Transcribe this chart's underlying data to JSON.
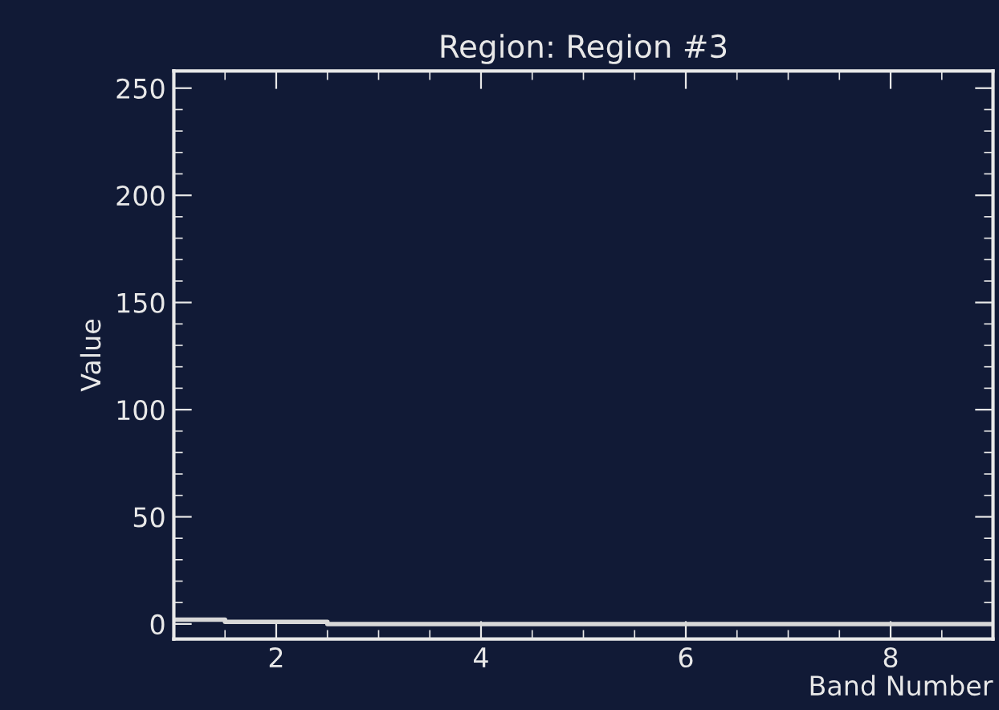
{
  "chart_data": {
    "type": "step",
    "title": "Region: Region #3",
    "xlabel": "Band Number",
    "ylabel": "Value",
    "x": [
      1,
      1.5,
      2.5,
      9
    ],
    "series": [
      {
        "color": "#d8d8d8",
        "values": [
          2,
          1,
          0,
          0
        ]
      }
    ],
    "xlim": [
      1,
      9
    ],
    "ylim": [
      -7,
      258
    ],
    "xticks": [
      2,
      4,
      6,
      8
    ],
    "yticks": [
      0,
      50,
      100,
      150,
      200,
      250
    ],
    "grid": false,
    "legend": false,
    "marker": "none",
    "line_style": "solid"
  }
}
